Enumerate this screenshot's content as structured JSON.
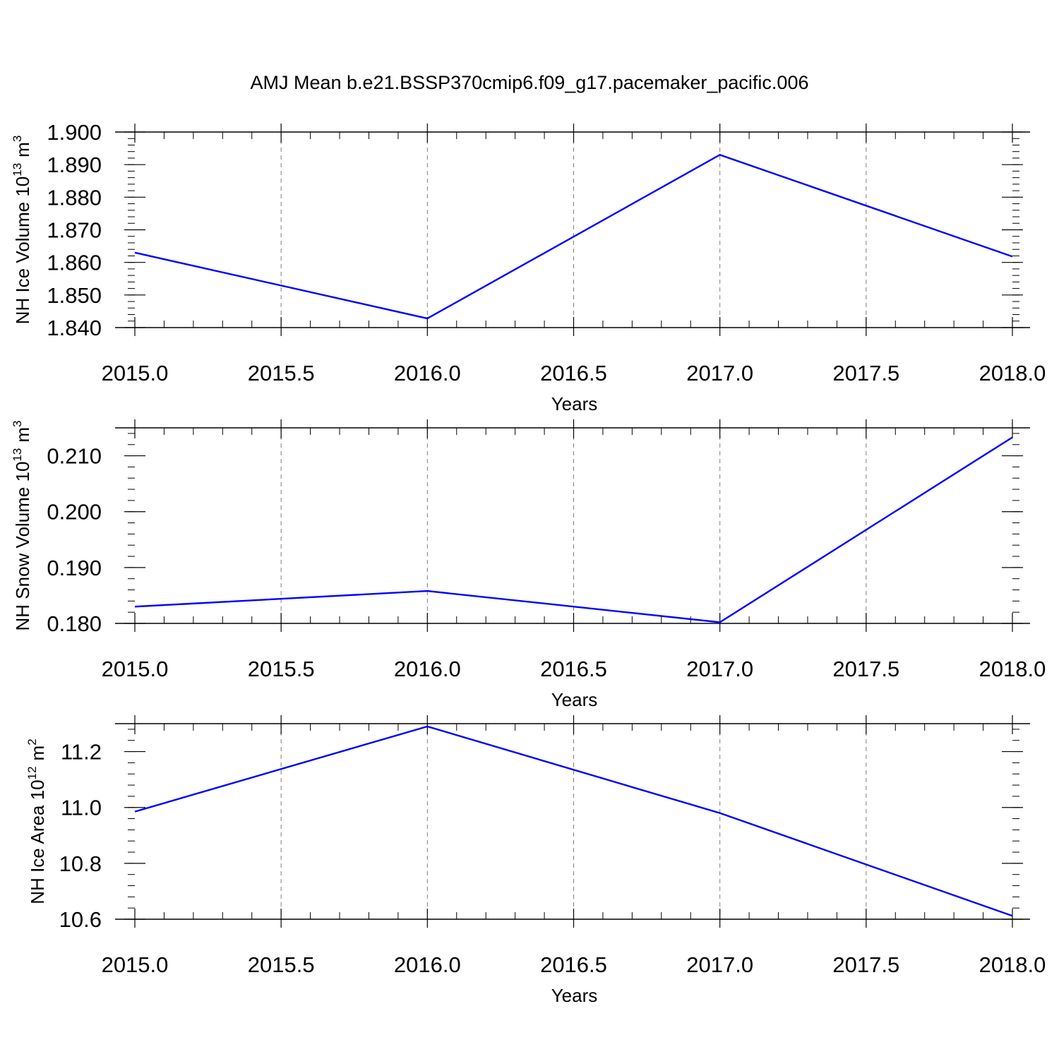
{
  "title": "AMJ Mean b.e21.BSSP370cmip6.f09_g17.pacemaker_pacific.006",
  "colors": {
    "line": "#0000ff",
    "axes": "#000000",
    "grid": "#808080"
  },
  "chart_data": [
    {
      "type": "line",
      "xlabel": "Years",
      "ylabel": "NH Ice Volume",
      "yunit": {
        "base": "10",
        "exp": "13",
        "unit": "m",
        "unit_exp": "3"
      },
      "x": [
        2015,
        2016,
        2017,
        2018
      ],
      "values": [
        1.863,
        1.8428,
        1.893,
        1.8618
      ],
      "xlim": [
        2015,
        2018
      ],
      "ylim": [
        1.84,
        1.9
      ],
      "xticks": [
        "2015.0",
        "2015.5",
        "2016.0",
        "2016.5",
        "2017.0",
        "2017.5",
        "2018.0"
      ],
      "yticks": [
        "1.840",
        "1.850",
        "1.860",
        "1.870",
        "1.880",
        "1.890",
        "1.900"
      ],
      "ytick_values": [
        1.84,
        1.85,
        1.86,
        1.87,
        1.88,
        1.89,
        1.9
      ],
      "grid": "vertical dashed"
    },
    {
      "type": "line",
      "xlabel": "Years",
      "ylabel": "NH Snow Volume",
      "yunit": {
        "base": "10",
        "exp": "13",
        "unit": "m",
        "unit_exp": "3"
      },
      "x": [
        2015,
        2016,
        2017,
        2018
      ],
      "values": [
        0.183,
        0.1858,
        0.1802,
        0.2133
      ],
      "xlim": [
        2015,
        2018
      ],
      "ylim": [
        0.18,
        0.215
      ],
      "xticks": [
        "2015.0",
        "2015.5",
        "2016.0",
        "2016.5",
        "2017.0",
        "2017.5",
        "2018.0"
      ],
      "yticks": [
        "0.180",
        "0.190",
        "0.200",
        "0.210"
      ],
      "ytick_values": [
        0.18,
        0.19,
        0.2,
        0.21
      ],
      "grid": "vertical dashed"
    },
    {
      "type": "line",
      "xlabel": "Years",
      "ylabel": "NH Ice Area",
      "yunit": {
        "base": "10",
        "exp": "12",
        "unit": "m",
        "unit_exp": "2"
      },
      "x": [
        2015,
        2016,
        2017,
        2018
      ],
      "values": [
        10.985,
        11.29,
        10.98,
        10.612
      ],
      "xlim": [
        2015,
        2018
      ],
      "ylim": [
        10.6,
        11.3
      ],
      "xticks": [
        "2015.0",
        "2015.5",
        "2016.0",
        "2016.5",
        "2017.0",
        "2017.5",
        "2018.0"
      ],
      "yticks": [
        "10.6",
        "10.8",
        "11.0",
        "11.2"
      ],
      "ytick_values": [
        10.6,
        10.8,
        11.0,
        11.2
      ],
      "grid": "vertical dashed"
    }
  ]
}
